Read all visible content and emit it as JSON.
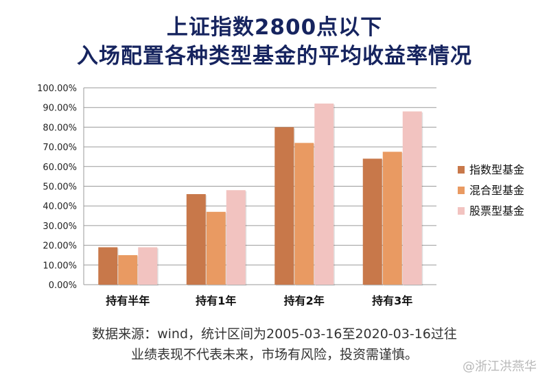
{
  "header": {
    "title_line1": "上证指数2800点以下",
    "title_line2": "入场配置各种类型基金的平均收益率情况"
  },
  "footer": {
    "source_note": "数据来源：wind，统计区间为2005-03-16至2020-03-16过往",
    "disclaimer": "业绩表现不代表未来，市场有风险，投资需谨慎。",
    "watermark": "@浙江洪燕华"
  },
  "chart_data": {
    "type": "bar",
    "title": "",
    "xlabel": "",
    "ylabel": "",
    "categories": [
      "持有半年",
      "持有1年",
      "持有2年",
      "持有3年"
    ],
    "series": [
      {
        "name": "指数型基金",
        "values": [
          0.19,
          0.46,
          0.8,
          0.64
        ],
        "color": "#c8784a"
      },
      {
        "name": "混合型基金",
        "values": [
          0.15,
          0.37,
          0.72,
          0.675
        ],
        "color": "#e99a62"
      },
      {
        "name": "股票型基金",
        "values": [
          0.19,
          0.48,
          0.92,
          0.88
        ],
        "color": "#f2c3c0"
      }
    ],
    "ylim": [
      0,
      1.0
    ],
    "yticks": [
      "0.00%",
      "10.00%",
      "20.00%",
      "30.00%",
      "40.00%",
      "50.00%",
      "60.00%",
      "70.00%",
      "80.00%",
      "90.00%",
      "100.00%"
    ],
    "grid": true,
    "legend_position": "right"
  }
}
